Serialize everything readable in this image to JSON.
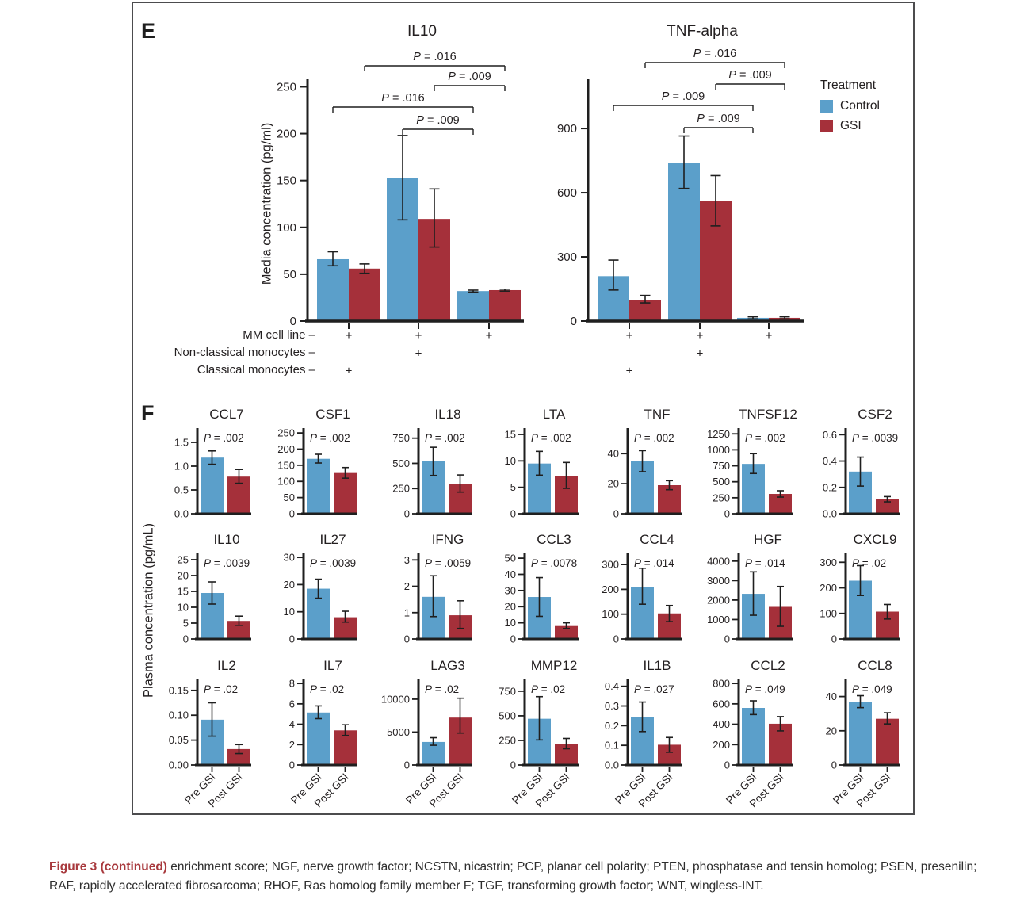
{
  "panels": {
    "e": "E",
    "f": "F"
  },
  "colors": {
    "control": "#5B9FCA",
    "gsi": "#A5303A",
    "axis": "#1f1f1f",
    "error_bar": "#1a1a1a",
    "border": "#4c4c4e",
    "caption_accent": "#A8393D"
  },
  "panel_e": {
    "ylabel": "Media concentration (pg/ml)",
    "legend": {
      "title": "Treatment",
      "items": [
        {
          "label": "Control",
          "key": "control"
        },
        {
          "label": "GSI",
          "key": "gsi"
        }
      ]
    },
    "condition_rows": [
      {
        "label": "MM cell line –",
        "marks": [
          "+",
          "+",
          "+"
        ]
      },
      {
        "label": "Non-classical monocytes –",
        "marks": [
          "",
          "+",
          ""
        ]
      },
      {
        "label": "Classical monocytes –",
        "marks": [
          "+",
          "",
          ""
        ]
      }
    ]
  },
  "panel_f": {
    "ylabel": "Plasma concentration (pg/mL)",
    "x_labels": [
      "Pre GSI",
      "Post GSI"
    ]
  },
  "caption": {
    "title": "Figure 3 (continued)",
    "text": "enrichment score; NGF, nerve growth factor; NCSTN, nicastrin; PCP, planar cell polarity; PTEN, phosphatase and tensin homolog; PSEN, presenilin; RAF, rapidly accelerated fibrosarcoma; RHOF, Ras homolog family member F; TGF, transforming growth factor; WNT, wingless-INT."
  },
  "chart_data": [
    {
      "panel": "E",
      "type": "bar",
      "title": "IL10",
      "ylabel": "Media concentration (pg/ml)",
      "ylim": [
        0,
        258
      ],
      "yticks": [
        0,
        50,
        100,
        150,
        200,
        250
      ],
      "ytick_labels": [
        "0",
        "50",
        "100",
        "150",
        "200",
        "250"
      ],
      "series": [
        {
          "name": "Control",
          "values": [
            66,
            153,
            32
          ],
          "err_lo": [
            59,
            108,
            31
          ],
          "err_hi": [
            74,
            198,
            33
          ]
        },
        {
          "name": "GSI",
          "values": [
            56,
            109,
            33
          ],
          "err_lo": [
            51,
            79,
            32
          ],
          "err_hi": [
            61,
            141,
            34
          ]
        }
      ],
      "brackets": [
        {
          "s_a": 1,
          "g_a": 0,
          "s_b": 1,
          "g_b": 2,
          "label": "P = .016"
        },
        {
          "s_a": 1,
          "g_a": 1,
          "s_b": 1,
          "g_b": 2,
          "label": "P = .009"
        },
        {
          "s_a": 0,
          "g_a": 0,
          "s_b": 0,
          "g_b": 2,
          "label": "P = .016"
        },
        {
          "s_a": 0,
          "g_a": 1,
          "s_b": 0,
          "g_b": 2,
          "label": "P = .009"
        }
      ]
    },
    {
      "panel": "E",
      "type": "bar",
      "title": "TNF-alpha",
      "ylabel": "Media concentration (pg/ml)",
      "ylim": [
        0,
        1130
      ],
      "yticks": [
        0,
        300,
        600,
        900
      ],
      "ytick_labels": [
        "0",
        "300",
        "600",
        "900"
      ],
      "series": [
        {
          "name": "Control",
          "values": [
            210,
            740,
            15
          ],
          "err_lo": [
            145,
            620,
            10
          ],
          "err_hi": [
            285,
            865,
            20
          ]
        },
        {
          "name": "GSI",
          "values": [
            100,
            560,
            15
          ],
          "err_lo": [
            85,
            445,
            10
          ],
          "err_hi": [
            120,
            680,
            20
          ]
        }
      ],
      "brackets": [
        {
          "s_a": 1,
          "g_a": 0,
          "s_b": 1,
          "g_b": 2,
          "label": "P = .016"
        },
        {
          "s_a": 1,
          "g_a": 1,
          "s_b": 1,
          "g_b": 2,
          "label": "P = .009"
        },
        {
          "s_a": 0,
          "g_a": 0,
          "s_b": 0,
          "g_b": 2,
          "label": "P = .009"
        },
        {
          "s_a": 0,
          "g_a": 1,
          "s_b": 0,
          "g_b": 2,
          "label": "P = .009"
        }
      ]
    },
    {
      "panel": "F",
      "type": "bar",
      "title": "CCL7",
      "p_label": "P = .002",
      "ylim": [
        0,
        1.8
      ],
      "yticks": [
        0,
        0.5,
        1,
        1.5
      ],
      "ytick_labels": [
        "0.0",
        "0.5",
        "1.0",
        "1.5"
      ],
      "series": [
        {
          "name": "Pre GSI",
          "value": 1.18,
          "err": [
            1.04,
            1.32
          ]
        },
        {
          "name": "Post GSI",
          "value": 0.78,
          "err": [
            0.64,
            0.93
          ]
        }
      ]
    },
    {
      "panel": "F",
      "type": "bar",
      "title": "CSF1",
      "p_label": "P = .002",
      "ylim": [
        0,
        265
      ],
      "yticks": [
        0,
        50,
        100,
        150,
        200,
        250
      ],
      "ytick_labels": [
        "0",
        "50",
        "100",
        "150",
        "200",
        "250"
      ],
      "series": [
        {
          "name": "Pre GSI",
          "value": 170,
          "err": [
            157,
            184
          ]
        },
        {
          "name": "Post GSI",
          "value": 126,
          "err": [
            110,
            143
          ]
        }
      ]
    },
    {
      "panel": "F",
      "type": "bar",
      "title": "IL18",
      "p_label": "P = .002",
      "ylim": [
        0,
        850
      ],
      "yticks": [
        0,
        250,
        500,
        750
      ],
      "ytick_labels": [
        "0",
        "250",
        "500",
        "750"
      ],
      "series": [
        {
          "name": "Pre GSI",
          "value": 520,
          "err": [
            380,
            660
          ]
        },
        {
          "name": "Post GSI",
          "value": 295,
          "err": [
            215,
            385
          ]
        }
      ]
    },
    {
      "panel": "F",
      "type": "bar",
      "title": "LTA",
      "p_label": "P = .002",
      "ylim": [
        0,
        16.2
      ],
      "yticks": [
        0,
        5,
        10,
        15
      ],
      "ytick_labels": [
        "0",
        "5",
        "10",
        "15"
      ],
      "series": [
        {
          "name": "Pre GSI",
          "value": 9.5,
          "err": [
            7.3,
            11.8
          ]
        },
        {
          "name": "Post GSI",
          "value": 7.2,
          "err": [
            4.8,
            9.7
          ]
        }
      ]
    },
    {
      "panel": "F",
      "type": "bar",
      "title": "TNF",
      "p_label": "P = .002",
      "ylim": [
        0,
        57
      ],
      "yticks": [
        0,
        20,
        40
      ],
      "ytick_labels": [
        "0",
        "20",
        "40"
      ],
      "series": [
        {
          "name": "Pre GSI",
          "value": 35,
          "err": [
            28,
            42
          ]
        },
        {
          "name": "Post GSI",
          "value": 19,
          "err": [
            16,
            22
          ]
        }
      ]
    },
    {
      "panel": "F",
      "type": "bar",
      "title": "TNFSF12",
      "p_label": "P = .002",
      "ylim": [
        0,
        1340
      ],
      "yticks": [
        0,
        250,
        500,
        750,
        1000,
        1250
      ],
      "ytick_labels": [
        "0",
        "250",
        "500",
        "750",
        "1000",
        "1250"
      ],
      "series": [
        {
          "name": "Pre GSI",
          "value": 780,
          "err": [
            630,
            940
          ]
        },
        {
          "name": "Post GSI",
          "value": 310,
          "err": [
            260,
            360
          ]
        }
      ]
    },
    {
      "panel": "F",
      "type": "bar",
      "title": "CSF2",
      "p_label": "P = .0039",
      "ylim": [
        0,
        0.65
      ],
      "yticks": [
        0,
        0.2,
        0.4,
        0.6
      ],
      "ytick_labels": [
        "0.0",
        "0.2",
        "0.4",
        "0.6"
      ],
      "series": [
        {
          "name": "Pre GSI",
          "value": 0.32,
          "err": [
            0.21,
            0.43
          ]
        },
        {
          "name": "Post GSI",
          "value": 0.11,
          "err": [
            0.09,
            0.13
          ]
        }
      ]
    },
    {
      "panel": "F",
      "type": "bar",
      "title": "IL10",
      "p_label": "P = .0039",
      "ylim": [
        0,
        27
      ],
      "yticks": [
        0,
        5,
        10,
        15,
        20,
        25
      ],
      "ytick_labels": [
        "0",
        "5",
        "10",
        "15",
        "20",
        "25"
      ],
      "series": [
        {
          "name": "Pre GSI",
          "value": 14.5,
          "err": [
            11,
            18
          ]
        },
        {
          "name": "Post GSI",
          "value": 5.7,
          "err": [
            4.3,
            7.2
          ]
        }
      ]
    },
    {
      "panel": "F",
      "type": "bar",
      "title": "IL27",
      "p_label": "P = .0039",
      "ylim": [
        0,
        31.5
      ],
      "yticks": [
        0,
        10,
        20,
        30
      ],
      "ytick_labels": [
        "0",
        "10",
        "20",
        "30"
      ],
      "series": [
        {
          "name": "Pre GSI",
          "value": 18.5,
          "err": [
            15,
            22
          ]
        },
        {
          "name": "Post GSI",
          "value": 8,
          "err": [
            6.2,
            10.2
          ]
        }
      ]
    },
    {
      "panel": "F",
      "type": "bar",
      "title": "IFNG",
      "p_label": "P = .0059",
      "ylim": [
        0,
        3.25
      ],
      "yticks": [
        0,
        1,
        2,
        3
      ],
      "ytick_labels": [
        "0",
        "1",
        "2",
        "3"
      ],
      "series": [
        {
          "name": "Pre GSI",
          "value": 1.6,
          "err": [
            0.85,
            2.4
          ]
        },
        {
          "name": "Post GSI",
          "value": 0.9,
          "err": [
            0.4,
            1.45
          ]
        }
      ]
    },
    {
      "panel": "F",
      "type": "bar",
      "title": "CCL3",
      "p_label": "P = .0078",
      "ylim": [
        0,
        53
      ],
      "yticks": [
        0,
        10,
        20,
        30,
        40,
        50
      ],
      "ytick_labels": [
        "0",
        "10",
        "20",
        "30",
        "40",
        "50"
      ],
      "series": [
        {
          "name": "Pre GSI",
          "value": 26,
          "err": [
            14,
            38
          ]
        },
        {
          "name": "Post GSI",
          "value": 8,
          "err": [
            6.5,
            10
          ]
        }
      ]
    },
    {
      "panel": "F",
      "type": "bar",
      "title": "CCL4",
      "p_label": "P = .014",
      "ylim": [
        0,
        345
      ],
      "yticks": [
        0,
        100,
        200,
        300
      ],
      "ytick_labels": [
        "0",
        "100",
        "200",
        "300"
      ],
      "series": [
        {
          "name": "Pre GSI",
          "value": 210,
          "err": [
            140,
            285
          ]
        },
        {
          "name": "Post GSI",
          "value": 103,
          "err": [
            70,
            135
          ]
        }
      ]
    },
    {
      "panel": "F",
      "type": "bar",
      "title": "HGF",
      "p_label": "P = .014",
      "ylim": [
        0,
        4400
      ],
      "yticks": [
        0,
        1000,
        2000,
        3000,
        4000
      ],
      "ytick_labels": [
        "0",
        "1000",
        "2000",
        "3000",
        "4000"
      ],
      "series": [
        {
          "name": "Pre GSI",
          "value": 2320,
          "err": [
            1220,
            3450
          ]
        },
        {
          "name": "Post GSI",
          "value": 1650,
          "err": [
            650,
            2700
          ]
        }
      ]
    },
    {
      "panel": "F",
      "type": "bar",
      "title": "CXCL9",
      "p_label": "P = .02",
      "ylim": [
        0,
        335
      ],
      "yticks": [
        0,
        100,
        200,
        300
      ],
      "ytick_labels": [
        "0",
        "100",
        "200",
        "300"
      ],
      "series": [
        {
          "name": "Pre GSI",
          "value": 228,
          "err": [
            170,
            287
          ]
        },
        {
          "name": "Post GSI",
          "value": 107,
          "err": [
            78,
            135
          ]
        }
      ]
    },
    {
      "panel": "F",
      "type": "bar",
      "title": "IL2",
      "p_label": "P = .02",
      "ylim": [
        0,
        0.172
      ],
      "yticks": [
        0,
        0.05,
        0.1,
        0.15
      ],
      "ytick_labels": [
        "0.00",
        "0.05",
        "0.10",
        "0.15"
      ],
      "series": [
        {
          "name": "Pre GSI",
          "value": 0.091,
          "err": [
            0.058,
            0.125
          ]
        },
        {
          "name": "Post GSI",
          "value": 0.032,
          "err": [
            0.023,
            0.041
          ]
        }
      ]
    },
    {
      "panel": "F",
      "type": "bar",
      "title": "IL7",
      "p_label": "P = .02",
      "ylim": [
        0,
        8.4
      ],
      "yticks": [
        0,
        2,
        4,
        6,
        8
      ],
      "ytick_labels": [
        "0",
        "2",
        "4",
        "6",
        "8"
      ],
      "series": [
        {
          "name": "Pre GSI",
          "value": 5.15,
          "err": [
            4.55,
            5.8
          ]
        },
        {
          "name": "Post GSI",
          "value": 3.4,
          "err": [
            2.9,
            3.95
          ]
        }
      ]
    },
    {
      "panel": "F",
      "type": "bar",
      "title": "LAG3",
      "p_label": "P = .02",
      "ylim": [
        0,
        13000
      ],
      "yticks": [
        0,
        5000,
        10000
      ],
      "ytick_labels": [
        "0",
        "5000",
        "10000"
      ],
      "series": [
        {
          "name": "Pre GSI",
          "value": 3500,
          "err": [
            3000,
            4150
          ]
        },
        {
          "name": "Post GSI",
          "value": 7200,
          "err": [
            4850,
            10150
          ]
        }
      ]
    },
    {
      "panel": "F",
      "type": "bar",
      "title": "MMP12",
      "p_label": "P = .02",
      "ylim": [
        0,
        870
      ],
      "yticks": [
        0,
        250,
        500,
        750
      ],
      "ytick_labels": [
        "0",
        "250",
        "500",
        "750"
      ],
      "series": [
        {
          "name": "Pre GSI",
          "value": 470,
          "err": [
            255,
            695
          ]
        },
        {
          "name": "Post GSI",
          "value": 215,
          "err": [
            165,
            270
          ]
        }
      ]
    },
    {
      "panel": "F",
      "type": "bar",
      "title": "IL1B",
      "p_label": "P = .027",
      "ylim": [
        0,
        0.435
      ],
      "yticks": [
        0,
        0.1,
        0.2,
        0.3,
        0.4
      ],
      "ytick_labels": [
        "0.0",
        "0.1",
        "0.2",
        "0.3",
        "0.4"
      ],
      "series": [
        {
          "name": "Pre GSI",
          "value": 0.245,
          "err": [
            0.17,
            0.32
          ]
        },
        {
          "name": "Post GSI",
          "value": 0.103,
          "err": [
            0.065,
            0.14
          ]
        }
      ]
    },
    {
      "panel": "F",
      "type": "bar",
      "title": "CCL2",
      "p_label": "P = .049",
      "ylim": [
        0,
        840
      ],
      "yticks": [
        0,
        200,
        400,
        600,
        800
      ],
      "ytick_labels": [
        "0",
        "200",
        "400",
        "600",
        "800"
      ],
      "series": [
        {
          "name": "Pre GSI",
          "value": 560,
          "err": [
            495,
            630
          ]
        },
        {
          "name": "Post GSI",
          "value": 405,
          "err": [
            335,
            475
          ]
        }
      ]
    },
    {
      "panel": "F",
      "type": "bar",
      "title": "CCL8",
      "p_label": "P = .049",
      "ylim": [
        0,
        50
      ],
      "yticks": [
        0,
        20,
        40
      ],
      "ytick_labels": [
        "0",
        "20",
        "40"
      ],
      "series": [
        {
          "name": "Pre GSI",
          "value": 37,
          "err": [
            33.5,
            40.5
          ]
        },
        {
          "name": "Post GSI",
          "value": 27,
          "err": [
            24,
            30.5
          ]
        }
      ]
    }
  ]
}
